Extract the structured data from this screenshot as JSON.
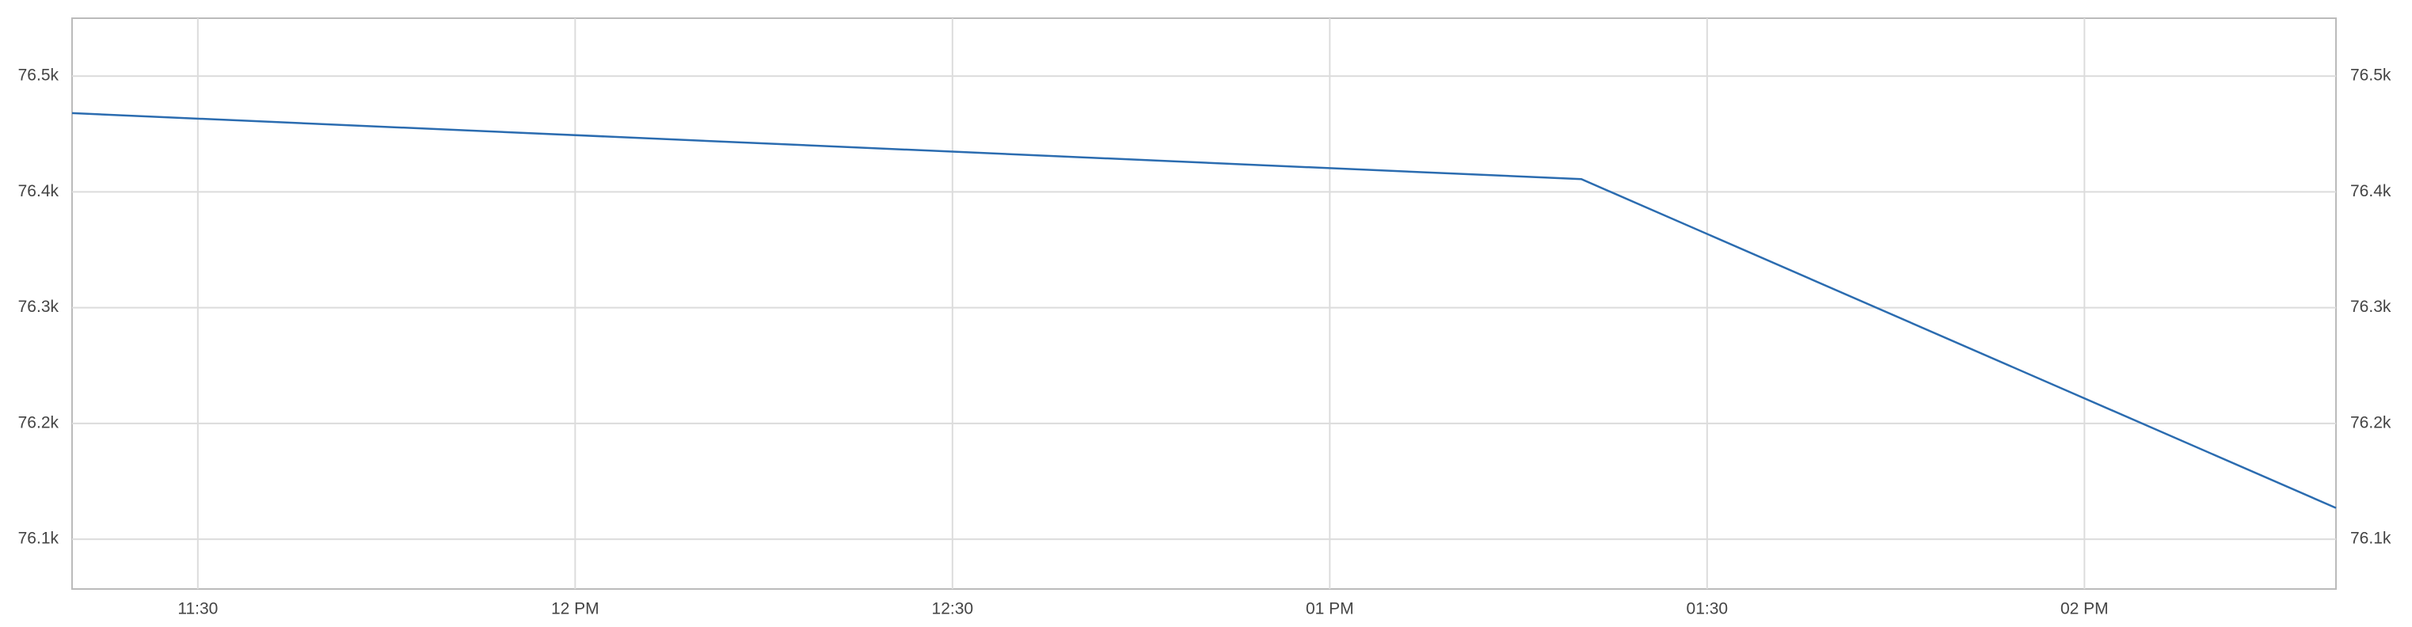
{
  "chart_data": {
    "type": "line",
    "x": [
      "11:20",
      "13:20",
      "14:20"
    ],
    "series": [
      {
        "color": "#2b6cb0",
        "values": [
          76468,
          76411,
          76127
        ]
      }
    ],
    "xlim": [
      "11:20",
      "14:20"
    ],
    "xticks": [
      {
        "value": "11:30",
        "label": "11:30"
      },
      {
        "value": "12:00",
        "label": "12 PM"
      },
      {
        "value": "12:30",
        "label": "12:30"
      },
      {
        "value": "13:00",
        "label": "01 PM"
      },
      {
        "value": "13:30",
        "label": "01:30"
      },
      {
        "value": "14:00",
        "label": "02 PM"
      }
    ],
    "ylim": [
      76057,
      76550
    ],
    "yticks": [
      {
        "value": 76100,
        "label": "76.1k"
      },
      {
        "value": 76200,
        "label": "76.2k"
      },
      {
        "value": 76300,
        "label": "76.3k"
      },
      {
        "value": 76400,
        "label": "76.4k"
      },
      {
        "value": 76500,
        "label": "76.5k"
      }
    ],
    "grid": true
  }
}
